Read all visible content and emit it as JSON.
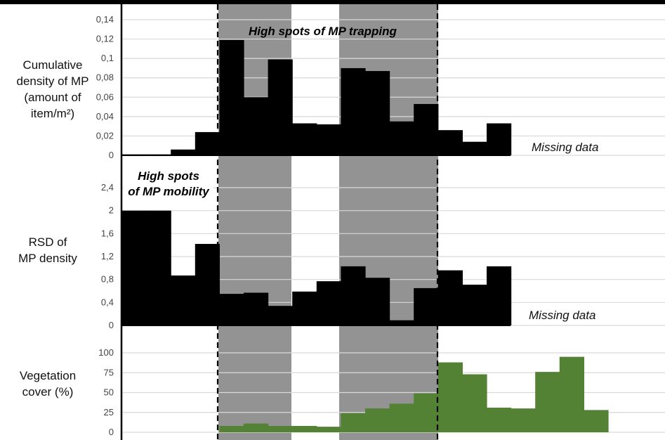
{
  "chart_data": [
    {
      "type": "bar",
      "ylabel_lines": [
        "Cumulative",
        "density of MP",
        "(amount of",
        "item/m²)"
      ],
      "ylim": [
        0,
        0.14
      ],
      "yticks": [
        "0",
        "0,02",
        "0,04",
        "0,06",
        "0,08",
        "0,1",
        "0,12",
        "0,14"
      ],
      "values": [
        0.001,
        0.001,
        0.006,
        0.024,
        0.119,
        0.06,
        0.099,
        0.033,
        0.032,
        0.09,
        0.087,
        0.035,
        0.053,
        0.026,
        0.014,
        0.033
      ],
      "bar_color": "#000000",
      "annotation": "High spots of MP trapping",
      "missing_label": "Missing data",
      "grid": true
    },
    {
      "type": "bar",
      "ylabel_lines": [
        "RSD of",
        "MP density"
      ],
      "ylim": [
        0,
        2.6
      ],
      "yticks": [
        "0",
        "0,4",
        "0,8",
        "1,2",
        "1,6",
        "2",
        "2,4"
      ],
      "values": [
        2.0,
        2.0,
        0.87,
        1.42,
        0.55,
        0.57,
        0.34,
        0.59,
        0.77,
        1.03,
        0.83,
        0.09,
        0.65,
        0.96,
        0.71,
        1.03
      ],
      "bar_color": "#000000",
      "annotation_lines": [
        "High spots",
        "of MP mobility"
      ],
      "missing_label": "Missing data",
      "grid": true
    },
    {
      "type": "bar",
      "ylabel_lines": [
        "Vegetation",
        "cover (%)"
      ],
      "ylim": [
        0,
        115
      ],
      "yticks": [
        "0",
        "25",
        "50",
        "75",
        "100"
      ],
      "values": [
        0,
        0,
        0,
        0,
        8,
        11,
        8,
        8,
        7,
        24,
        30,
        36,
        49,
        88,
        73,
        31,
        30,
        76,
        95,
        28
      ],
      "bar_color": "#548235",
      "grid": true
    }
  ],
  "colors": {
    "highlight_band": "#939393",
    "gridline": "#d9d9d9",
    "density_bars": "#000000",
    "vegetation_bars": "#548235"
  }
}
